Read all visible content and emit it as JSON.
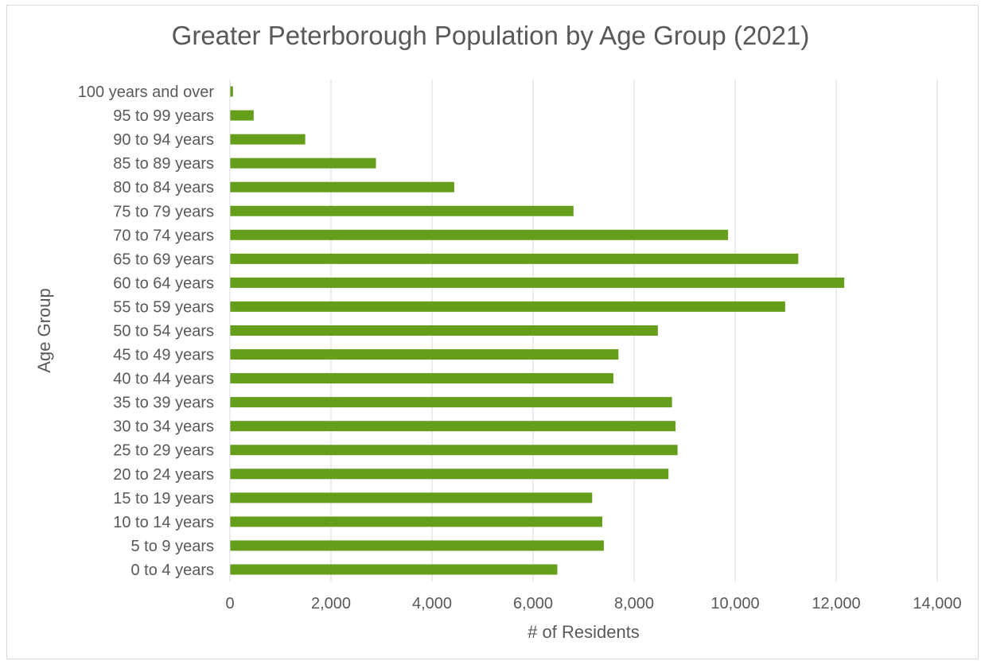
{
  "chart_data": {
    "type": "bar",
    "orientation": "horizontal",
    "title": "Greater Peterborough Population by Age Group (2021)",
    "xlabel": "# of Residents",
    "ylabel": "Age Group",
    "xlim": [
      0,
      14000
    ],
    "xticks": [
      0,
      2000,
      4000,
      6000,
      8000,
      10000,
      12000,
      14000
    ],
    "xtick_labels": [
      "0",
      "2,000",
      "4,000",
      "6,000",
      "8,000",
      "10,000",
      "12,000",
      "14,000"
    ],
    "grid": "vertical gridlines on",
    "legend": "none",
    "bar_color": "#659e1b",
    "categories": [
      "100 years and over",
      "95 to 99 years",
      "90 to 94 years",
      "85 to 89 years",
      "80 to 84 years",
      "75 to 79 years",
      "70 to 74 years",
      "65 to 69 years",
      "60 to 64 years",
      "55 to 59 years",
      "50 to 54 years",
      "45 to 49 years",
      "40 to 44 years",
      "35 to 39 years",
      "30 to 34 years",
      "25 to 29 years",
      "20 to 24 years",
      "15 to 19 years",
      "10 to 14 years",
      "5 to 9 years",
      "0 to 4 years"
    ],
    "values": [
      60,
      470,
      1490,
      2890,
      4440,
      6800,
      9860,
      11250,
      12160,
      10990,
      8470,
      7690,
      7590,
      8750,
      8820,
      8860,
      8680,
      7170,
      7370,
      7400,
      6480
    ]
  }
}
